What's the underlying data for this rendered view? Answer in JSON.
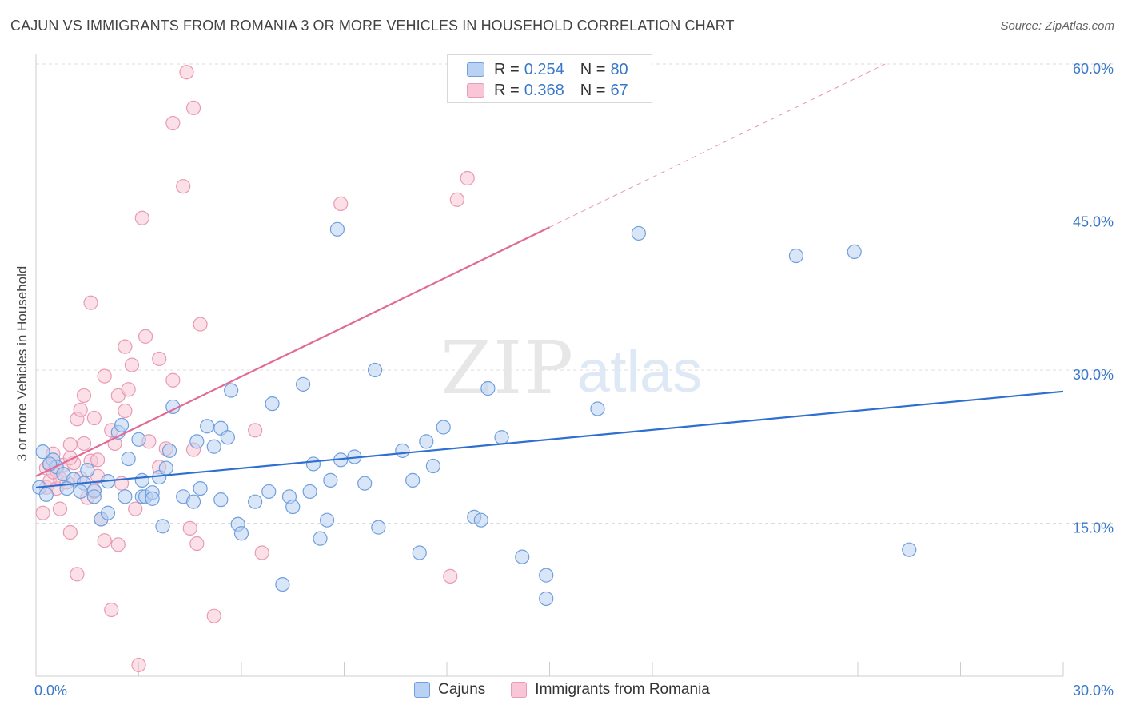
{
  "title": "CAJUN VS IMMIGRANTS FROM ROMANIA 3 OR MORE VEHICLES IN HOUSEHOLD CORRELATION CHART",
  "source": "Source: ZipAtlas.com",
  "watermark": {
    "zip": "ZIP",
    "atlas": "atlas"
  },
  "legend": {
    "rows": [
      {
        "r_label": "R =",
        "r_value": "0.254",
        "n_label": "N =",
        "n_value": "80"
      },
      {
        "r_label": "R =",
        "r_value": "0.368",
        "n_label": "N =",
        "n_value": "67"
      }
    ]
  },
  "colors": {
    "cajun_fill": "#b9d1f2",
    "cajun_stroke": "#6f9fdd",
    "cajun_line": "#2e6fd0",
    "romania_fill": "#f8c6d6",
    "romania_stroke": "#e99ab4",
    "romania_line": "#e06b96",
    "grid": "#dcdcdc",
    "tick_text": "#3a78c9"
  },
  "chart_data": {
    "type": "scatter",
    "xlabel": "",
    "ylabel": "3 or more Vehicles in Household",
    "xlim": [
      0,
      30
    ],
    "ylim": [
      0,
      60
    ],
    "x_tick_labels": [
      "0.0%",
      "30.0%"
    ],
    "y_ticks": [
      15,
      30,
      45,
      60
    ],
    "y_tick_labels": [
      "15.0%",
      "30.0%",
      "45.0%",
      "60.0%"
    ],
    "grid": true,
    "legend_position": "bottom",
    "series": [
      {
        "name": "Cajuns",
        "points": [
          [
            0.2,
            22.0
          ],
          [
            0.5,
            21.2
          ],
          [
            0.6,
            20.5
          ],
          [
            0.4,
            20.8
          ],
          [
            0.8,
            19.8
          ],
          [
            1.1,
            19.3
          ],
          [
            1.4,
            18.9
          ],
          [
            1.7,
            18.2
          ],
          [
            0.9,
            18.4
          ],
          [
            1.3,
            18.1
          ],
          [
            1.7,
            17.6
          ],
          [
            1.9,
            15.4
          ],
          [
            2.1,
            19.1
          ],
          [
            2.1,
            16.0
          ],
          [
            2.4,
            23.9
          ],
          [
            2.5,
            24.6
          ],
          [
            2.6,
            17.6
          ],
          [
            2.7,
            21.3
          ],
          [
            3.0,
            23.2
          ],
          [
            3.1,
            19.2
          ],
          [
            3.1,
            17.6
          ],
          [
            3.2,
            17.6
          ],
          [
            3.4,
            18.0
          ],
          [
            3.4,
            17.4
          ],
          [
            3.6,
            19.5
          ],
          [
            3.7,
            14.7
          ],
          [
            3.8,
            20.4
          ],
          [
            3.9,
            22.1
          ],
          [
            4.0,
            26.4
          ],
          [
            4.3,
            17.6
          ],
          [
            4.6,
            17.1
          ],
          [
            4.7,
            23.0
          ],
          [
            4.8,
            18.4
          ],
          [
            5.0,
            24.5
          ],
          [
            5.2,
            22.5
          ],
          [
            5.4,
            24.3
          ],
          [
            5.4,
            17.3
          ],
          [
            5.6,
            23.4
          ],
          [
            5.7,
            28.0
          ],
          [
            5.9,
            14.9
          ],
          [
            6.0,
            14.0
          ],
          [
            6.4,
            17.1
          ],
          [
            6.8,
            18.1
          ],
          [
            6.9,
            26.7
          ],
          [
            7.2,
            9.0
          ],
          [
            7.4,
            17.6
          ],
          [
            7.5,
            16.6
          ],
          [
            7.8,
            28.6
          ],
          [
            8.0,
            18.1
          ],
          [
            8.1,
            20.8
          ],
          [
            8.3,
            13.5
          ],
          [
            8.5,
            15.3
          ],
          [
            8.6,
            19.2
          ],
          [
            8.8,
            43.8
          ],
          [
            8.9,
            21.2
          ],
          [
            9.3,
            21.5
          ],
          [
            9.6,
            18.9
          ],
          [
            9.9,
            30.0
          ],
          [
            10.0,
            14.6
          ],
          [
            10.7,
            22.1
          ],
          [
            11.0,
            19.2
          ],
          [
            11.2,
            12.1
          ],
          [
            11.4,
            23.0
          ],
          [
            11.6,
            20.6
          ],
          [
            11.9,
            24.4
          ],
          [
            12.8,
            15.6
          ],
          [
            13.0,
            15.3
          ],
          [
            13.2,
            28.2
          ],
          [
            13.6,
            23.4
          ],
          [
            14.2,
            11.7
          ],
          [
            14.9,
            9.9
          ],
          [
            14.9,
            7.6
          ],
          [
            16.4,
            26.2
          ],
          [
            17.6,
            43.4
          ],
          [
            22.2,
            41.2
          ],
          [
            23.9,
            41.6
          ],
          [
            25.5,
            12.4
          ],
          [
            0.1,
            18.5
          ],
          [
            0.3,
            17.8
          ],
          [
            1.5,
            20.2
          ]
        ]
      },
      {
        "name": "Immigrants from Romania",
        "points": [
          [
            0.2,
            16.0
          ],
          [
            0.3,
            18.5
          ],
          [
            0.3,
            20.4
          ],
          [
            0.4,
            19.1
          ],
          [
            0.4,
            20.7
          ],
          [
            0.5,
            21.8
          ],
          [
            0.6,
            20.2
          ],
          [
            0.6,
            18.4
          ],
          [
            0.7,
            19.4
          ],
          [
            0.7,
            16.4
          ],
          [
            0.8,
            20.7
          ],
          [
            0.9,
            19.0
          ],
          [
            1.0,
            14.1
          ],
          [
            1.0,
            22.7
          ],
          [
            1.1,
            20.9
          ],
          [
            1.2,
            25.2
          ],
          [
            1.2,
            10.0
          ],
          [
            1.3,
            26.1
          ],
          [
            1.3,
            19.4
          ],
          [
            1.4,
            22.8
          ],
          [
            1.4,
            27.5
          ],
          [
            1.5,
            17.5
          ],
          [
            1.6,
            21.1
          ],
          [
            1.6,
            36.6
          ],
          [
            1.7,
            25.3
          ],
          [
            1.7,
            18.1
          ],
          [
            1.8,
            19.6
          ],
          [
            1.8,
            21.2
          ],
          [
            1.9,
            15.4
          ],
          [
            2.0,
            29.4
          ],
          [
            2.0,
            13.3
          ],
          [
            2.2,
            24.1
          ],
          [
            2.2,
            6.5
          ],
          [
            2.3,
            22.8
          ],
          [
            2.4,
            12.9
          ],
          [
            2.4,
            27.5
          ],
          [
            2.5,
            18.9
          ],
          [
            2.6,
            26.0
          ],
          [
            2.6,
            32.3
          ],
          [
            2.7,
            28.1
          ],
          [
            2.8,
            30.5
          ],
          [
            2.9,
            16.4
          ],
          [
            3.0,
            1.1
          ],
          [
            3.1,
            44.9
          ],
          [
            3.2,
            33.3
          ],
          [
            3.3,
            23.0
          ],
          [
            3.6,
            20.5
          ],
          [
            3.6,
            31.1
          ],
          [
            3.8,
            22.3
          ],
          [
            4.0,
            29.0
          ],
          [
            4.0,
            54.2
          ],
          [
            4.3,
            48.0
          ],
          [
            4.4,
            59.2
          ],
          [
            4.5,
            14.5
          ],
          [
            4.6,
            22.2
          ],
          [
            4.6,
            55.7
          ],
          [
            4.7,
            13.0
          ],
          [
            4.8,
            34.5
          ],
          [
            5.2,
            5.9
          ],
          [
            6.4,
            24.1
          ],
          [
            6.6,
            12.1
          ],
          [
            8.9,
            46.3
          ],
          [
            12.1,
            9.8
          ],
          [
            12.3,
            46.7
          ],
          [
            12.6,
            48.8
          ],
          [
            0.5,
            20.0
          ],
          [
            1.0,
            21.4
          ]
        ]
      }
    ],
    "trend_lines": [
      {
        "series": "Cajuns",
        "x": [
          0.0,
          30.0
        ],
        "y": [
          18.5,
          27.9
        ]
      },
      {
        "series": "Immigrants from Romania",
        "x": [
          0.0,
          15.0
        ],
        "y": [
          19.6,
          44.0
        ],
        "dashed_extension_x": [
          15.0,
          24.8
        ],
        "dashed_extension_y": [
          44.0,
          60.0
        ]
      }
    ]
  }
}
